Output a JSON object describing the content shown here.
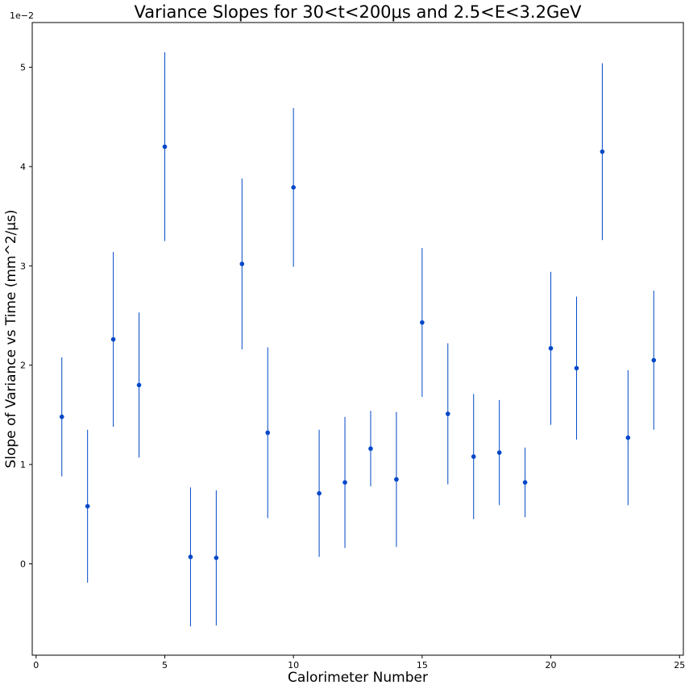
{
  "chart_data": {
    "type": "scatter",
    "title": "Variance Slopes for 30<t<200μs and 2.5<E<3.2GeV",
    "xlabel": "Calorimeter Number",
    "ylabel": "Slope of Variance vs Time (mm^2/μs)",
    "y_offset_text": "1e−2",
    "xlim": [
      -0.15,
      25.15
    ],
    "ylim": [
      -0.92,
      5.45
    ],
    "x_ticks": [
      0,
      5,
      10,
      15,
      20,
      25
    ],
    "x_tick_labels": [
      "0",
      "5",
      "10",
      "15",
      "20",
      "25"
    ],
    "y_ticks": [
      0,
      1,
      2,
      3,
      4,
      5
    ],
    "y_tick_labels": [
      "0",
      "1",
      "2",
      "3",
      "4",
      "5"
    ],
    "grid": false,
    "legend": false,
    "marker_color": "#0047c8",
    "errorbar_color": "#0047c8",
    "series": [
      {
        "x": [
          1,
          2,
          3,
          4,
          5,
          6,
          7,
          8,
          9,
          10,
          11,
          12,
          13,
          14,
          15,
          16,
          17,
          18,
          19,
          20,
          21,
          22,
          23,
          24
        ],
        "y": [
          1.48,
          0.58,
          2.26,
          1.8,
          4.2,
          0.07,
          0.06,
          3.02,
          1.32,
          3.79,
          0.71,
          0.82,
          1.16,
          0.85,
          2.43,
          1.51,
          1.08,
          1.12,
          0.82,
          2.17,
          1.97,
          4.15,
          1.27,
          2.05
        ],
        "y_err": [
          0.6,
          0.77,
          0.88,
          0.73,
          0.95,
          0.7,
          0.68,
          0.86,
          0.86,
          0.8,
          0.64,
          0.66,
          0.38,
          0.68,
          0.75,
          0.71,
          0.63,
          0.53,
          0.35,
          0.77,
          0.72,
          0.89,
          0.68,
          0.7
        ]
      }
    ]
  }
}
